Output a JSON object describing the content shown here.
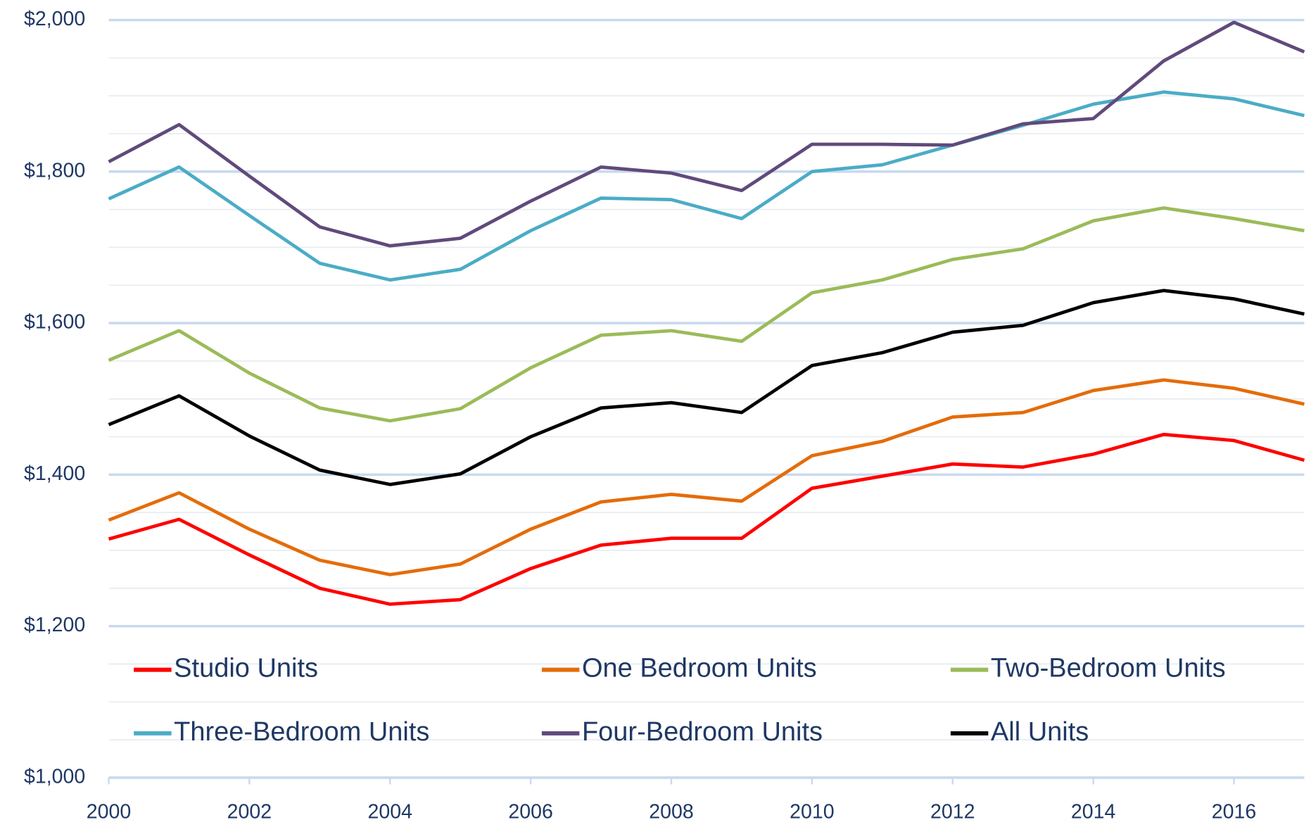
{
  "chart_data": {
    "type": "line",
    "x": [
      2000,
      2001,
      2002,
      2003,
      2004,
      2005,
      2006,
      2007,
      2008,
      2009,
      2010,
      2011,
      2012,
      2013,
      2014,
      2015,
      2016,
      2017
    ],
    "series": [
      {
        "name": "Studio Units",
        "color": "#ff0000",
        "values": [
          1315,
          1341,
          1294,
          1250,
          1229,
          1235,
          1276,
          1307,
          1316,
          1316,
          1382,
          1398,
          1414,
          1410,
          1427,
          1453,
          1445,
          1419
        ]
      },
      {
        "name": "One Bedroom Units",
        "color": "#e46c0a",
        "values": [
          1340,
          1376,
          1328,
          1287,
          1268,
          1282,
          1328,
          1364,
          1374,
          1365,
          1425,
          1444,
          1476,
          1482,
          1511,
          1525,
          1514,
          1493
        ]
      },
      {
        "name": "Two-Bedroom Units",
        "color": "#9bbb59",
        "values": [
          1551,
          1590,
          1534,
          1488,
          1471,
          1487,
          1541,
          1584,
          1590,
          1576,
          1640,
          1657,
          1684,
          1698,
          1735,
          1752,
          1738,
          1722
        ]
      },
      {
        "name": "Three-Bedroom Units",
        "color": "#4bacc6",
        "values": [
          1764,
          1806,
          1742,
          1679,
          1657,
          1671,
          1722,
          1765,
          1763,
          1738,
          1800,
          1809,
          1835,
          1861,
          1889,
          1905,
          1896,
          1874
        ]
      },
      {
        "name": "Four-Bedroom Units",
        "color": "#604a7b",
        "values": [
          1813,
          1862,
          1794,
          1727,
          1702,
          1712,
          1761,
          1806,
          1798,
          1775,
          1836,
          1836,
          1835,
          1863,
          1870,
          1946,
          1997,
          1958
        ]
      },
      {
        "name": "All Units",
        "color": "#000000",
        "values": [
          1466,
          1504,
          1451,
          1406,
          1387,
          1401,
          1450,
          1488,
          1495,
          1482,
          1544,
          1561,
          1588,
          1597,
          1627,
          1643,
          1632,
          1612
        ]
      }
    ],
    "xlim": [
      2000,
      2017
    ],
    "xticks": [
      2000,
      2002,
      2004,
      2006,
      2008,
      2010,
      2012,
      2014,
      2016
    ],
    "ylim": [
      1000,
      2000
    ],
    "yticks": [
      {
        "value": 1000,
        "label": "$1,000"
      },
      {
        "value": 1200,
        "label": "$1,200"
      },
      {
        "value": 1400,
        "label": "$1,400"
      },
      {
        "value": 1600,
        "label": "$1,600"
      },
      {
        "value": 1800,
        "label": "$1,800"
      },
      {
        "value": 2000,
        "label": "$2,000"
      }
    ],
    "minor_gridlines": [
      1050,
      1100,
      1150,
      1250,
      1300,
      1350,
      1450,
      1500,
      1550,
      1650,
      1700,
      1750,
      1850,
      1900,
      1950
    ],
    "grid": true,
    "legend": "lower left"
  }
}
